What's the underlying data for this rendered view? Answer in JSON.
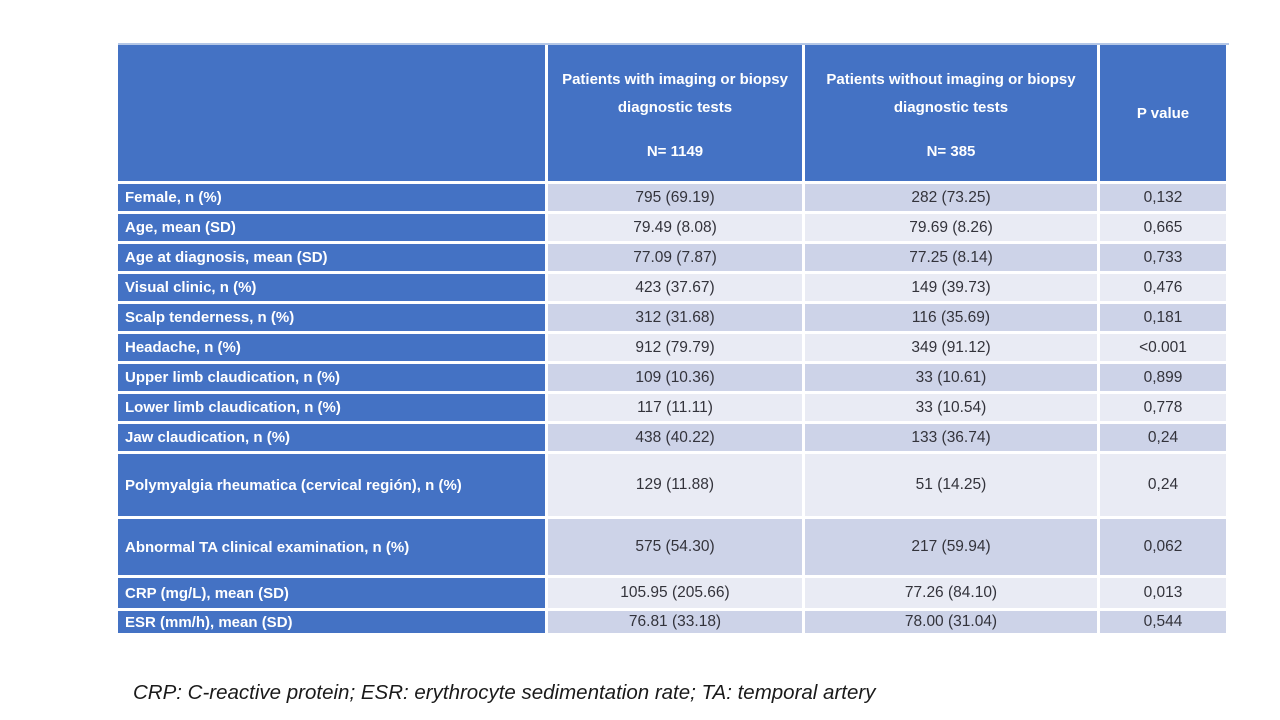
{
  "header": {
    "with_tests": {
      "title": "Patients with imaging or biopsy diagnostic tests",
      "n": "N= 1149"
    },
    "without_tests": {
      "title": "Patients without imaging or biopsy diagnostic tests",
      "n": "N= 385"
    },
    "p_value_label": "P value"
  },
  "rows": [
    {
      "label": "Female, n (%)",
      "with_tests": "795 (69.19)",
      "without_tests": "282 (73.25)",
      "p_value": "0,132"
    },
    {
      "label": "Age, mean (SD)",
      "with_tests": "79.49 (8.08)",
      "without_tests": "79.69 (8.26)",
      "p_value": "0,665"
    },
    {
      "label": "Age at diagnosis, mean (SD)",
      "with_tests": "77.09 (7.87)",
      "without_tests": "77.25 (8.14)",
      "p_value": "0,733"
    },
    {
      "label": "Visual clinic, n (%)",
      "with_tests": "423 (37.67)",
      "without_tests": "149 (39.73)",
      "p_value": "0,476"
    },
    {
      "label": "Scalp tenderness, n (%)",
      "with_tests": "312 (31.68)",
      "without_tests": "116 (35.69)",
      "p_value": "0,181"
    },
    {
      "label": "Headache, n (%)",
      "with_tests": "912 (79.79)",
      "without_tests": "349 (91.12)",
      "p_value": "<0.001"
    },
    {
      "label": "Upper limb claudication, n (%)",
      "with_tests": "109 (10.36)",
      "without_tests": "33 (10.61)",
      "p_value": "0,899"
    },
    {
      "label": "Lower limb claudication, n (%)",
      "with_tests": "117 (11.11)",
      "without_tests": "33 (10.54)",
      "p_value": "0,778"
    },
    {
      "label": "Jaw claudication, n (%)",
      "with_tests": "438 (40.22)",
      "without_tests": "133 (36.74)",
      "p_value": "0,24"
    },
    {
      "label": "Polymyalgia rheumatica (cervical región), n (%)",
      "with_tests": "129 (11.88)",
      "without_tests": "51 (14.25)",
      "p_value": "0,24"
    },
    {
      "label": "Abnormal TA clinical examination, n (%)",
      "with_tests": "575 (54.30)",
      "without_tests": "217 (59.94)",
      "p_value": "0,062"
    },
    {
      "label": "CRP (mg/L), mean (SD)",
      "with_tests": "105.95 (205.66)",
      "without_tests": "77.26 (84.10)",
      "p_value": "0,013"
    },
    {
      "label": "ESR (mm/h), mean (SD)",
      "with_tests": "76.81 (33.18)",
      "without_tests": "78.00 (31.04)",
      "p_value": "0,544"
    }
  ],
  "footnote": "CRP: C-reactive protein; ESR: erythrocyte sedimentation rate; TA: temporal artery",
  "colors": {
    "header_blue": "#4472c4",
    "band_dark": "#cdd3e8",
    "band_light": "#e9ebf4",
    "top_border": "#b4c7e7"
  }
}
